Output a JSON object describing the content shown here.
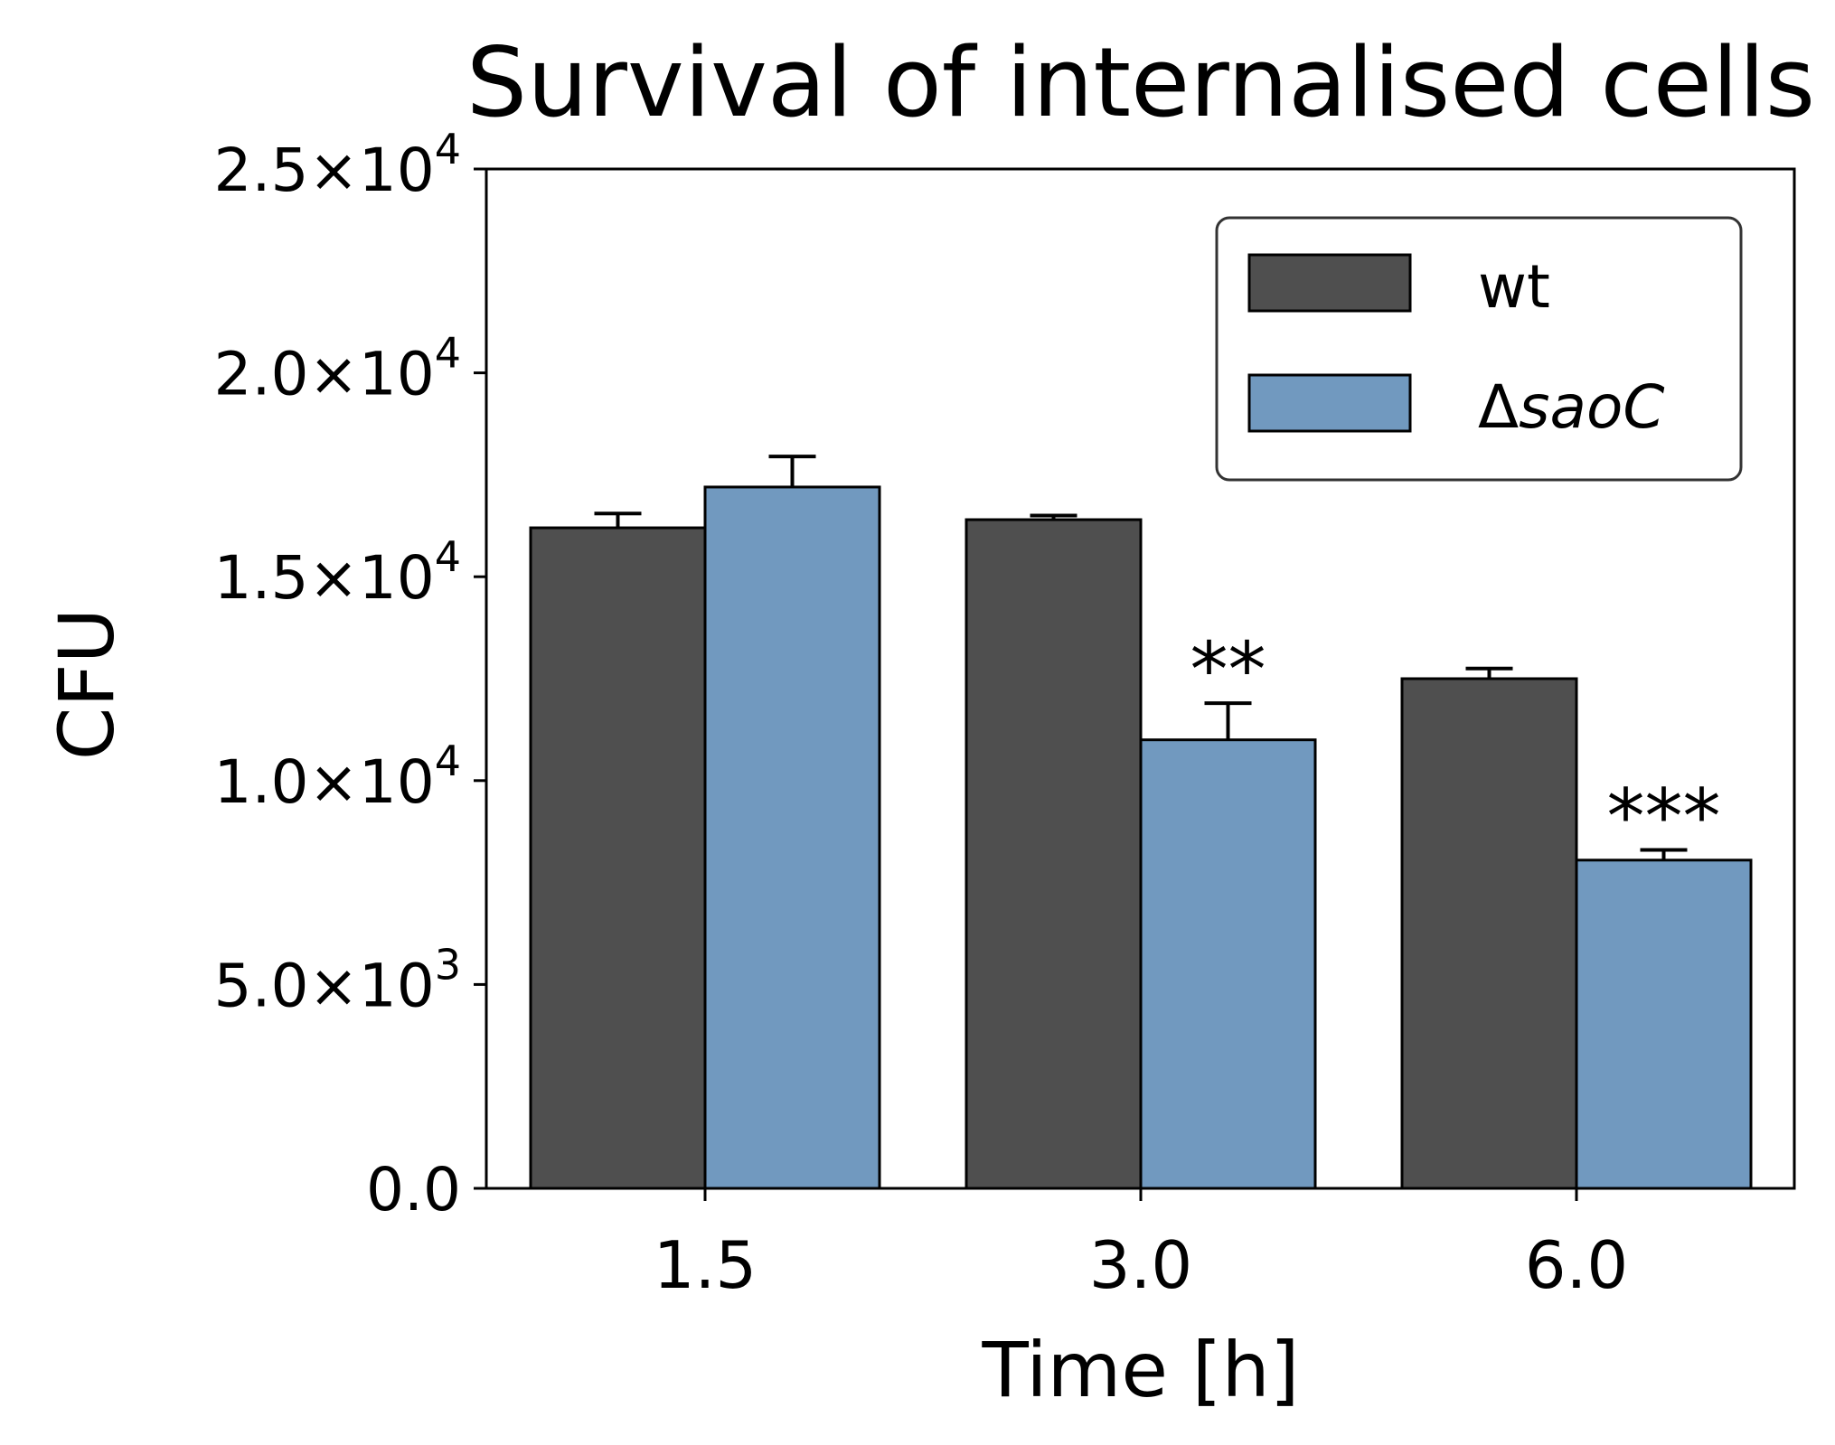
{
  "chart_data": {
    "type": "bar",
    "title": "Survival of internalised cells",
    "xlabel": "Time [h]",
    "ylabel": "CFU",
    "categories": [
      "1.5",
      "3.0",
      "6.0"
    ],
    "ylim": [
      0,
      25000
    ],
    "yticks": [
      {
        "value": 0,
        "mantissa": "0.0",
        "exponent": ""
      },
      {
        "value": 5000,
        "mantissa": "5.0",
        "exponent": "3"
      },
      {
        "value": 10000,
        "mantissa": "1.0",
        "exponent": "4"
      },
      {
        "value": 15000,
        "mantissa": "1.5",
        "exponent": "4"
      },
      {
        "value": 20000,
        "mantissa": "2.0",
        "exponent": "4"
      },
      {
        "value": 25000,
        "mantissa": "2.5",
        "exponent": "4"
      }
    ],
    "series": [
      {
        "name": "wt",
        "color": "#4f4f4f",
        "values": [
          16200,
          16400,
          12500
        ],
        "errors": [
          350,
          100,
          250
        ]
      },
      {
        "name": "ΔsaoC",
        "color": "#7199bf",
        "values": [
          17200,
          11000,
          8050
        ],
        "errors": [
          750,
          900,
          250
        ]
      }
    ],
    "annotations": [
      {
        "category": "3.0",
        "series": "ΔsaoC",
        "text": "**"
      },
      {
        "category": "6.0",
        "series": "ΔsaoC",
        "text": "***"
      }
    ],
    "legend": {
      "position": "top-right",
      "delta": "Δ",
      "italic_name": "saoC"
    },
    "grid": false
  }
}
